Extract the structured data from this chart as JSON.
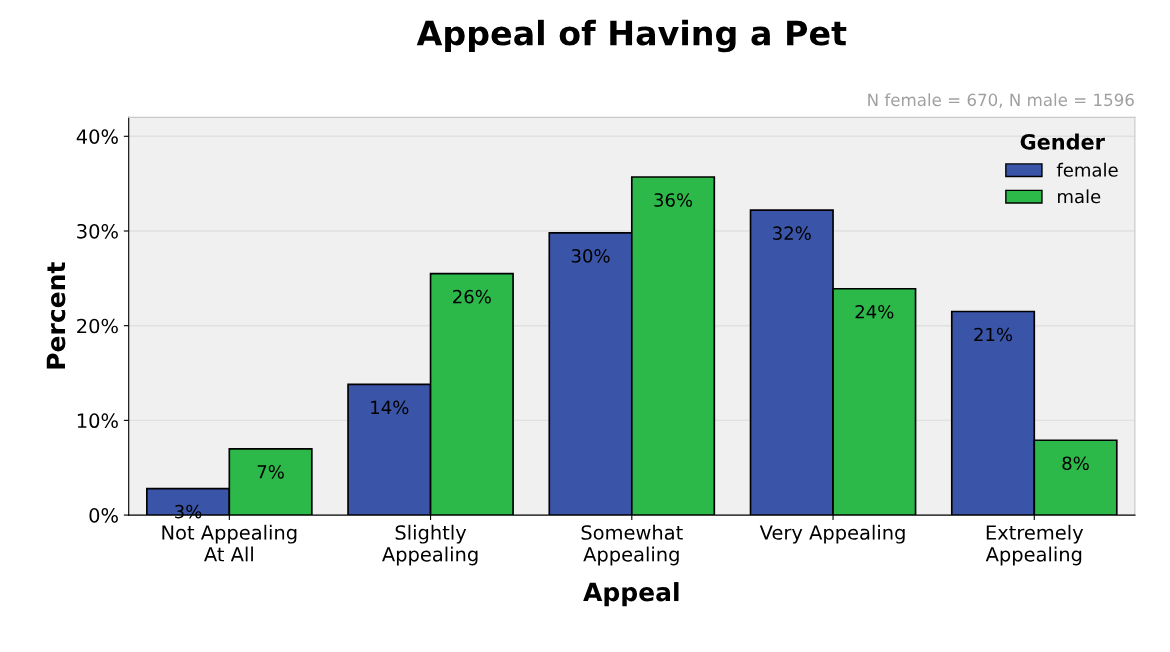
{
  "chart_data": {
    "type": "bar",
    "title": "Appeal of Having a Pet",
    "xlabel": "Appeal",
    "ylabel": "Percent",
    "legend_title": "Gender",
    "annotations": [
      "N female = 670, N male = 1596"
    ],
    "categories": [
      "Not Appealing\nAt All",
      "Slightly\nAppealing",
      "Somewhat\nAppealing",
      "Very Appealing",
      "Extremely\nAppealing"
    ],
    "series": [
      {
        "name": "female",
        "color": "#3a55a8",
        "values": [
          2.8,
          13.8,
          29.8,
          32.2,
          21.5
        ],
        "value_labels": [
          "3%",
          "14%",
          "30%",
          "32%",
          "21%"
        ]
      },
      {
        "name": "male",
        "color": "#2db84a",
        "values": [
          7.0,
          25.5,
          35.7,
          23.9,
          7.9
        ],
        "value_labels": [
          "7%",
          "26%",
          "36%",
          "24%",
          "8%"
        ]
      }
    ],
    "ylim": [
      0,
      42
    ],
    "yticks": [
      {
        "value": 0,
        "label": "0%"
      },
      {
        "value": 10,
        "label": "10%"
      },
      {
        "value": 20,
        "label": "20%"
      },
      {
        "value": 30,
        "label": "30%"
      },
      {
        "value": 40,
        "label": "40%"
      }
    ],
    "grid": "y",
    "legend": "top right"
  }
}
